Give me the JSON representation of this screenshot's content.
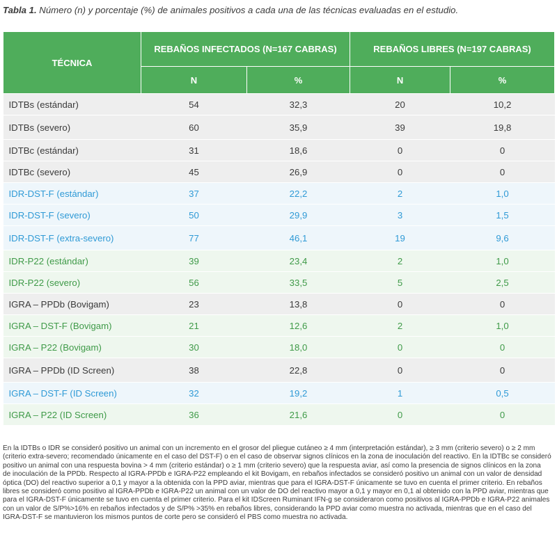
{
  "caption": {
    "label": "Tabla 1.",
    "text": " Número (n) y porcentaje (%) de animales positivos a cada una de las técnicas evaluadas en el estudio."
  },
  "header": {
    "tecnica": "TÉCNICA",
    "group1": "REBAÑOS INFECTADOS  (N=167 CABRAS)",
    "group2": "REBAÑOS LIBRES (N=197 CABRAS)",
    "n1": "N",
    "pct1": "%",
    "n2": "N",
    "pct2": "%"
  },
  "rows": [
    {
      "name": "IDTBs (estándar)",
      "n1": "54",
      "p1": "32,3",
      "n2": "20",
      "p2": "10,2",
      "group": "gray"
    },
    {
      "name": "IDTBs (severo)",
      "n1": "60",
      "p1": "35,9",
      "n2": "39",
      "p2": "19,8",
      "group": "gray"
    },
    {
      "name": "IDTBc (estándar)",
      "n1": "31",
      "p1": "18,6",
      "n2": "0",
      "p2": "0",
      "group": "gray"
    },
    {
      "name": "IDTBc (severo)",
      "n1": "45",
      "p1": "26,9",
      "n2": "0",
      "p2": "0",
      "group": "gray"
    },
    {
      "name": "IDR-DST-F (estándar)",
      "n1": "37",
      "p1": "22,2",
      "n2": "2",
      "p2": "1,0",
      "group": "blue"
    },
    {
      "name": "IDR-DST-F (severo)",
      "n1": "50",
      "p1": "29,9",
      "n2": "3",
      "p2": "1,5",
      "group": "blue"
    },
    {
      "name": "IDR-DST-F (extra-severo)",
      "n1": "77",
      "p1": "46,1",
      "n2": "19",
      "p2": "9,6",
      "group": "blue"
    },
    {
      "name": "IDR-P22 (estándar)",
      "n1": "39",
      "p1": "23,4",
      "n2": "2",
      "p2": "1,0",
      "group": "green"
    },
    {
      "name": "IDR-P22 (severo)",
      "n1": "56",
      "p1": "33,5",
      "n2": "5",
      "p2": "2,5",
      "group": "green"
    },
    {
      "name": "IGRA – PPDb (Bovigam)",
      "n1": "23",
      "p1": "13,8",
      "n2": "0",
      "p2": "0",
      "group": "gray"
    },
    {
      "name": "IGRA – DST-F (Bovigam)",
      "n1": "21",
      "p1": "12,6",
      "n2": "2",
      "p2": "1,0",
      "group": "green"
    },
    {
      "name": "IGRA – P22 (Bovigam)",
      "n1": "30",
      "p1": "18,0",
      "n2": "0",
      "p2": "0",
      "group": "green"
    },
    {
      "name": "IGRA – PPDb (ID Screen)",
      "n1": "38",
      "p1": "22,8",
      "n2": "0",
      "p2": "0",
      "group": "gray"
    },
    {
      "name": "IGRA – DST-F (ID Screen)",
      "n1": "32",
      "p1": "19,2",
      "n2": "1",
      "p2": "0,5",
      "group": "blue"
    },
    {
      "name": "IGRA – P22 (ID Screen)",
      "n1": "36",
      "p1": "21,6",
      "n2": "0",
      "p2": "0",
      "group": "green"
    }
  ],
  "colors": {
    "header_green": "#4fad5b",
    "row_gray": "#eeeeee",
    "row_blue": "#eef6fb",
    "row_green": "#eef7ee",
    "text_blue": "#2f9ad6",
    "text_green": "#3f9a48"
  },
  "note": {
    "lines": [
      "En la IDTBs o IDR se consideró positivo un animal con un incremento en el grosor del pliegue cutáneo ≥ 4 mm (interpretación estándar), ≥ 3 mm (criterio severo) o ≥ 2 mm",
      "(criterio extra-severo; recomendado únicamente en el caso del DST-F) o en el caso de observar signos clínicos en la zona de inoculación del reactivo. En la IDTBc se consideró",
      "positivo un animal con una respuesta bovina > 4 mm (criterio estándar) o ≥ 1 mm (criterio severo) que la respuesta aviar, así como la presencia de signos clínicos en la zona",
      "de inoculación de la PPDb. Respecto al IGRA-PPDb e IGRA-P22 empleando el kit Bovigam, en rebaños infectados se consideró positivo un animal con un valor de densidad",
      "óptica (DO) del reactivo superior a 0,1 y mayor a la obtenida con la PPD aviar, mientras que para el IGRA-DST-F únicamente se tuvo en cuenta el primer criterio. En rebaños",
      "libres se consideró como positivo al IGRA-PPDb e IGRA-P22 un animal con un valor de DO del reactivo mayor a 0,1 y mayor en 0,1 al obtenido con la PPD aviar, mientras que",
      "para el IGRA-DST-F únicamente se tuvo en cuenta el primer criterio. Para el kit IDScreen Ruminant IFN-g se consideraron como positivos al IGRA-PPDb e IGRA-P22 animales",
      "con un valor de S/P%>16% en rebaños infectados y de S/P% >35% en rebaños libres, considerando la PPD aviar como muestra no activada, mientras que en el caso del",
      "IGRA-DST-F se mantuvieron los mismos puntos de corte pero se consideró el PBS como muestra no activada."
    ]
  }
}
